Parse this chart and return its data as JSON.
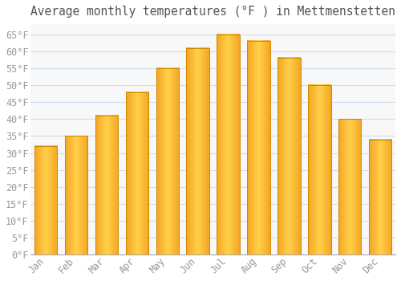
{
  "title": "Average monthly temperatures (°F ) in Mettmenstetten",
  "months": [
    "Jan",
    "Feb",
    "Mar",
    "Apr",
    "May",
    "Jun",
    "Jul",
    "Aug",
    "Sep",
    "Oct",
    "Nov",
    "Dec"
  ],
  "values": [
    32,
    35,
    41,
    48,
    55,
    61,
    65,
    63,
    58,
    50,
    40,
    34
  ],
  "bar_color_center": "#FFD04A",
  "bar_color_edge": "#F5A623",
  "bar_edge_color": "#CC8800",
  "background_color": "#FFFFFF",
  "plot_bg_color": "#F8F8F8",
  "grid_color": "#CCDDEE",
  "text_color": "#999999",
  "title_color": "#555555",
  "ylim": [
    0,
    68
  ],
  "yticks": [
    0,
    5,
    10,
    15,
    20,
    25,
    30,
    35,
    40,
    45,
    50,
    55,
    60,
    65
  ],
  "title_fontsize": 10.5,
  "tick_fontsize": 8.5,
  "bar_width": 0.75
}
